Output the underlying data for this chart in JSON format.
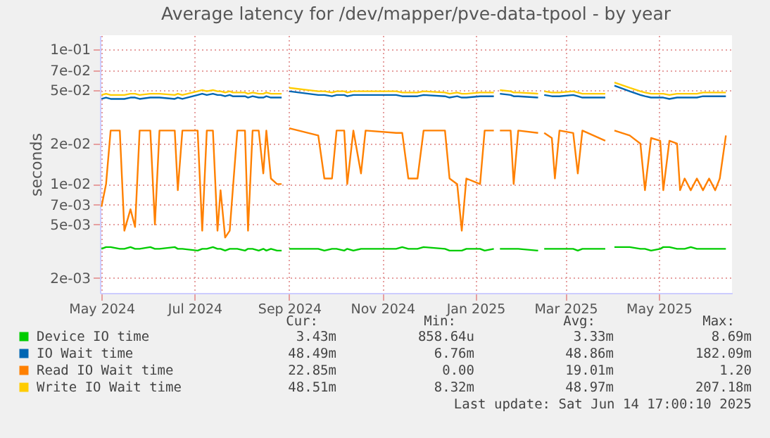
{
  "chart_data": {
    "type": "line",
    "title": "Average latency for /dev/mapper/pve-data-tpool - by year",
    "ylabel": "seconds",
    "log": true,
    "grid": true,
    "legend": "bottom",
    "line_style": "solid",
    "marker": "none",
    "x": [
      "2024-05-01",
      "2024-05-04",
      "2024-05-07",
      "2024-05-13",
      "2024-05-16",
      "2024-05-20",
      "2024-05-23",
      "2024-05-26",
      "2024-06-02",
      "2024-06-05",
      "2024-06-08",
      "2024-06-18",
      "2024-06-20",
      "2024-06-23",
      "2024-07-03",
      "2024-07-06",
      "2024-07-09",
      "2024-07-13",
      "2024-07-16",
      "2024-07-18",
      "2024-07-21",
      "2024-07-24",
      "2024-07-26",
      "2024-07-29",
      "2024-08-03",
      "2024-08-05",
      "2024-08-08",
      "2024-08-12",
      "2024-08-15",
      "2024-08-17",
      "2024-08-20",
      "2024-08-24",
      "2024-08-27",
      "2024-08-29",
      "2024-09-01",
      "2024-09-20",
      "2024-09-24",
      "2024-09-29",
      "2024-10-02",
      "2024-10-07",
      "2024-10-09",
      "2024-10-13",
      "2024-10-18",
      "2024-10-21",
      "2024-11-10",
      "2024-11-14",
      "2024-11-18",
      "2024-11-24",
      "2024-11-28",
      "2024-12-12",
      "2024-12-15",
      "2024-12-20",
      "2024-12-23",
      "2024-12-26",
      "2025-01-04",
      "2025-01-07",
      "2025-01-13",
      "2025-01-15",
      "2025-01-17",
      "2025-01-24",
      "2025-01-26",
      "2025-01-29",
      "2025-02-11",
      "2025-02-13",
      "2025-02-15",
      "2025-02-20",
      "2025-02-22",
      "2025-02-25",
      "2025-03-06",
      "2025-03-09",
      "2025-03-12",
      "2025-03-27",
      "2025-03-30",
      "2025-04-02",
      "2025-04-12",
      "2025-04-19",
      "2025-04-22",
      "2025-04-26",
      "2025-05-02",
      "2025-05-04",
      "2025-05-08",
      "2025-05-13",
      "2025-05-15",
      "2025-05-18",
      "2025-05-22",
      "2025-05-26",
      "2025-05-30",
      "2025-06-03",
      "2025-06-07",
      "2025-06-10",
      "2025-06-14"
    ],
    "xlim": [
      "2024-04-30",
      "2025-06-18"
    ],
    "xticks": [
      {
        "value": "2024-05-01",
        "label": "May 2024"
      },
      {
        "value": "2024-07-01",
        "label": "Jul 2024"
      },
      {
        "value": "2024-09-01",
        "label": "Sep 2024"
      },
      {
        "value": "2024-11-01",
        "label": "Nov 2024"
      },
      {
        "value": "2025-01-01",
        "label": "Jan 2025"
      },
      {
        "value": "2025-03-01",
        "label": "Mar 2025"
      },
      {
        "value": "2025-05-01",
        "label": "May 2025"
      }
    ],
    "ylim": [
      0.00155,
      0.128
    ],
    "yticks": [
      {
        "value": 0.002,
        "label": "2e-03"
      },
      {
        "value": 0.005,
        "label": "5e-03"
      },
      {
        "value": 0.007,
        "label": "7e-03"
      },
      {
        "value": 0.01,
        "label": "1e-02"
      },
      {
        "value": 0.02,
        "label": "2e-02"
      },
      {
        "value": 0.05,
        "label": "5e-02"
      },
      {
        "value": 0.07,
        "label": "7e-02"
      },
      {
        "value": 0.1,
        "label": "1e-01"
      }
    ],
    "series": [
      {
        "name": "Device IO time",
        "color": "#00cc00",
        "values": [
          0.0033,
          0.0034,
          0.0034,
          0.0033,
          0.0033,
          0.0034,
          0.0033,
          0.0033,
          0.0034,
          0.0033,
          0.0033,
          0.0034,
          0.0033,
          0.0033,
          0.0032,
          0.0033,
          0.0033,
          0.0034,
          0.0033,
          0.0033,
          0.0032,
          0.0033,
          0.0033,
          0.0033,
          0.0032,
          0.0033,
          0.0033,
          0.0032,
          0.0033,
          0.0032,
          0.0033,
          0.0032,
          0.0032,
          null,
          0.0033,
          0.0033,
          0.0032,
          0.0033,
          0.0033,
          0.0032,
          0.0033,
          0.0032,
          0.0033,
          0.0033,
          0.0033,
          0.0034,
          0.0033,
          0.0033,
          0.0034,
          0.0033,
          0.0032,
          0.0032,
          0.0032,
          0.0033,
          0.0033,
          0.0032,
          0.0033,
          null,
          0.0033,
          0.0033,
          0.0033,
          0.0033,
          0.0032,
          null,
          0.0033,
          0.0033,
          0.0033,
          0.0033,
          0.0033,
          0.0032,
          0.0033,
          0.0033,
          null,
          0.0034,
          0.0034,
          0.0033,
          0.0033,
          0.0032,
          0.0033,
          0.0034,
          0.0034,
          0.0033,
          0.0033,
          0.0033,
          0.0034,
          0.0033,
          0.0033,
          0.0033,
          0.0033,
          0.0033,
          0.0033
        ]
      },
      {
        "name": "IO Wait time",
        "color": "#0066b3",
        "values": [
          0.043,
          0.044,
          0.043,
          0.043,
          0.043,
          0.044,
          0.044,
          0.043,
          0.044,
          0.044,
          0.044,
          0.043,
          0.044,
          0.043,
          0.046,
          0.047,
          0.046,
          0.047,
          0.046,
          0.046,
          0.045,
          0.046,
          0.045,
          0.045,
          0.045,
          0.044,
          0.045,
          0.044,
          0.044,
          0.045,
          0.044,
          0.044,
          0.044,
          null,
          0.049,
          0.046,
          0.046,
          0.045,
          0.046,
          0.046,
          0.045,
          0.046,
          0.046,
          0.046,
          0.046,
          0.045,
          0.045,
          0.045,
          0.046,
          0.045,
          0.044,
          0.045,
          0.044,
          0.044,
          0.045,
          0.045,
          0.045,
          null,
          0.047,
          0.046,
          0.045,
          0.045,
          0.044,
          null,
          0.046,
          0.045,
          0.045,
          0.045,
          0.046,
          0.045,
          0.044,
          0.044,
          null,
          0.054,
          0.049,
          0.046,
          0.045,
          0.044,
          0.044,
          0.044,
          0.043,
          0.044,
          0.044,
          0.044,
          0.044,
          0.044,
          0.045,
          0.045,
          0.045,
          0.045,
          0.045
        ]
      },
      {
        "name": "Read IO Wait time",
        "color": "#ff8000",
        "values": [
          0.0068,
          0.01,
          0.025,
          0.025,
          0.0045,
          0.0065,
          0.0048,
          0.025,
          0.025,
          0.005,
          0.025,
          0.025,
          0.009,
          0.025,
          0.025,
          0.0045,
          0.025,
          0.025,
          0.0045,
          0.009,
          0.004,
          0.0045,
          0.009,
          0.025,
          0.025,
          0.0045,
          0.025,
          0.025,
          0.012,
          0.025,
          0.011,
          0.01,
          0.01,
          null,
          0.026,
          0.023,
          0.011,
          0.011,
          0.025,
          0.025,
          0.01,
          0.025,
          0.012,
          0.025,
          0.024,
          0.024,
          0.011,
          0.011,
          0.025,
          0.025,
          0.011,
          0.01,
          0.0045,
          0.011,
          0.01,
          0.025,
          0.025,
          null,
          0.025,
          0.025,
          0.01,
          0.025,
          0.024,
          null,
          0.024,
          0.022,
          0.011,
          0.025,
          0.024,
          0.012,
          0.025,
          0.021,
          null,
          0.025,
          0.023,
          0.02,
          0.009,
          0.022,
          0.021,
          0.009,
          0.021,
          0.02,
          0.009,
          0.011,
          0.009,
          0.011,
          0.009,
          0.011,
          0.009,
          0.011,
          0.023
        ]
      },
      {
        "name": "Write IO Wait time",
        "color": "#ffcc00",
        "values": [
          0.046,
          0.047,
          0.046,
          0.046,
          0.046,
          0.047,
          0.047,
          0.046,
          0.047,
          0.047,
          0.047,
          0.046,
          0.047,
          0.046,
          0.049,
          0.05,
          0.049,
          0.05,
          0.049,
          0.049,
          0.048,
          0.049,
          0.048,
          0.048,
          0.048,
          0.047,
          0.048,
          0.047,
          0.047,
          0.048,
          0.047,
          0.047,
          0.047,
          null,
          0.052,
          0.049,
          0.049,
          0.048,
          0.049,
          0.049,
          0.048,
          0.049,
          0.049,
          0.049,
          0.049,
          0.048,
          0.048,
          0.048,
          0.049,
          0.048,
          0.047,
          0.048,
          0.047,
          0.047,
          0.048,
          0.048,
          0.048,
          null,
          0.05,
          0.049,
          0.048,
          0.048,
          0.047,
          null,
          0.049,
          0.048,
          0.048,
          0.048,
          0.049,
          0.048,
          0.047,
          0.047,
          null,
          0.057,
          0.052,
          0.049,
          0.048,
          0.047,
          0.047,
          0.047,
          0.046,
          0.047,
          0.047,
          0.047,
          0.047,
          0.047,
          0.048,
          0.048,
          0.048,
          0.048,
          0.048
        ]
      }
    ],
    "annotations": [
      "Cur:",
      "Min:",
      "Avg:",
      "Max:",
      "3.43m",
      "858.64u",
      "3.33m",
      "8.69m",
      "48.49m",
      "6.76m",
      "48.86m",
      "182.09m",
      "22.85m",
      "0.00",
      "19.01m",
      "1.20",
      "48.51m",
      "8.32m",
      "48.97m",
      "207.18m",
      "Last update: Sat Jun 14 17:00:10 2025"
    ]
  }
}
